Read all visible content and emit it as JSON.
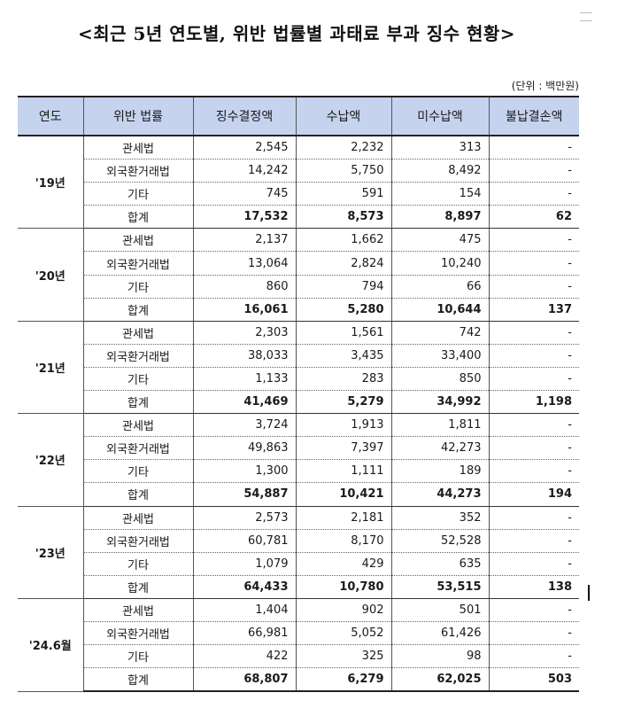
{
  "title": "<최근 5년 연도별, 위반 법률별 과태료 부과 징수 현황>",
  "unit": "(단위 : 백만원)",
  "headers": [
    "연도",
    "위반 법률",
    "징수결정액",
    "수납액",
    "미수납액",
    "불납결손액"
  ],
  "groups": [
    {
      "year": "'19년",
      "rows": [
        {
          "law": "관세법",
          "v": [
            "2,545",
            "2,232",
            "313",
            "-"
          ]
        },
        {
          "law": "외국환거래법",
          "v": [
            "14,242",
            "5,750",
            "8,492",
            "-"
          ]
        },
        {
          "law": "기타",
          "v": [
            "745",
            "591",
            "154",
            "-"
          ]
        },
        {
          "law": "합계",
          "v": [
            "17,532",
            "8,573",
            "8,897",
            "62"
          ],
          "total": true
        }
      ]
    },
    {
      "year": "'20년",
      "rows": [
        {
          "law": "관세법",
          "v": [
            "2,137",
            "1,662",
            "475",
            "-"
          ]
        },
        {
          "law": "외국환거래법",
          "v": [
            "13,064",
            "2,824",
            "10,240",
            "-"
          ]
        },
        {
          "law": "기타",
          "v": [
            "860",
            "794",
            "66",
            "-"
          ]
        },
        {
          "law": "합계",
          "v": [
            "16,061",
            "5,280",
            "10,644",
            "137"
          ],
          "total": true
        }
      ]
    },
    {
      "year": "'21년",
      "rows": [
        {
          "law": "관세법",
          "v": [
            "2,303",
            "1,561",
            "742",
            "-"
          ]
        },
        {
          "law": "외국환거래법",
          "v": [
            "38,033",
            "3,435",
            "33,400",
            "-"
          ]
        },
        {
          "law": "기타",
          "v": [
            "1,133",
            "283",
            "850",
            "-"
          ]
        },
        {
          "law": "합계",
          "v": [
            "41,469",
            "5,279",
            "34,992",
            "1,198"
          ],
          "total": true
        }
      ]
    },
    {
      "year": "'22년",
      "rows": [
        {
          "law": "관세법",
          "v": [
            "3,724",
            "1,913",
            "1,811",
            "-"
          ]
        },
        {
          "law": "외국환거래법",
          "v": [
            "49,863",
            "7,397",
            "42,273",
            "-"
          ]
        },
        {
          "law": "기타",
          "v": [
            "1,300",
            "1,111",
            "189",
            "-"
          ]
        },
        {
          "law": "합계",
          "v": [
            "54,887",
            "10,421",
            "44,273",
            "194"
          ],
          "total": true
        }
      ]
    },
    {
      "year": "'23년",
      "rows": [
        {
          "law": "관세법",
          "v": [
            "2,573",
            "2,181",
            "352",
            "-"
          ]
        },
        {
          "law": "외국환거래법",
          "v": [
            "60,781",
            "8,170",
            "52,528",
            "-"
          ]
        },
        {
          "law": "기타",
          "v": [
            "1,079",
            "429",
            "635",
            "-"
          ]
        },
        {
          "law": "합계",
          "v": [
            "64,433",
            "10,780",
            "53,515",
            "138"
          ],
          "total": true
        }
      ]
    },
    {
      "year": "'24.6월",
      "rows": [
        {
          "law": "관세법",
          "v": [
            "1,404",
            "902",
            "501",
            "-"
          ]
        },
        {
          "law": "외국환거래법",
          "v": [
            "66,981",
            "5,052",
            "61,426",
            "-"
          ]
        },
        {
          "law": "기타",
          "v": [
            "422",
            "325",
            "98",
            "-"
          ]
        },
        {
          "law": "합계",
          "v": [
            "68,807",
            "6,279",
            "62,025",
            "503"
          ],
          "total": true
        }
      ]
    }
  ]
}
